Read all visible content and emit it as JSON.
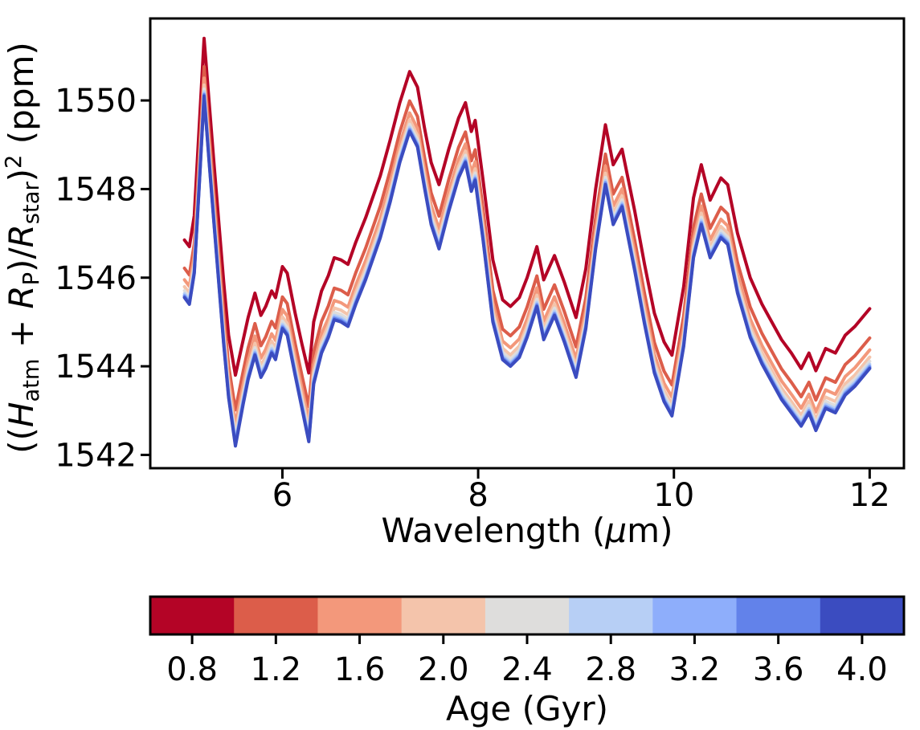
{
  "figure": {
    "background": "#ffffff"
  },
  "chart_data": {
    "type": "line",
    "title": "",
    "xlabel": "Wavelength (μm)",
    "ylabel": "((H_atm + R_P)/R_star)^2 (ppm)",
    "xlabel_parts": [
      {
        "t": "Wavelength (",
        "s": "n"
      },
      {
        "t": "μ",
        "s": "i"
      },
      {
        "t": "m)",
        "s": "n"
      }
    ],
    "ylabel_parts": [
      {
        "t": "((",
        "s": "n"
      },
      {
        "t": "H",
        "s": "i"
      },
      {
        "t": "atm",
        "s": "sub"
      },
      {
        "t": " + ",
        "s": "n"
      },
      {
        "t": "R",
        "s": "i"
      },
      {
        "t": "P",
        "s": "sub"
      },
      {
        "t": ")/",
        "s": "n"
      },
      {
        "t": "R",
        "s": "i"
      },
      {
        "t": "star",
        "s": "sub"
      },
      {
        "t": ")",
        "s": "n"
      },
      {
        "t": "2",
        "s": "sup"
      },
      {
        "t": " (ppm)",
        "s": "n"
      }
    ],
    "grid": false,
    "legend": "none (colorbar encodes series)",
    "xlim": [
      4.65,
      12.35
    ],
    "ylim": [
      1541.7,
      1551.85
    ],
    "x_ticks": [
      "6",
      "8",
      "10",
      "12"
    ],
    "x_tick_values": [
      6,
      8,
      10,
      12
    ],
    "y_ticks": [
      "1542",
      "1544",
      "1546",
      "1548",
      "1550"
    ],
    "y_tick_values": [
      1542,
      1544,
      1546,
      1548,
      1550
    ],
    "x": [
      5.0,
      5.05,
      5.1,
      5.15,
      5.2,
      5.25,
      5.3,
      5.4,
      5.45,
      5.52,
      5.6,
      5.65,
      5.72,
      5.78,
      5.83,
      5.89,
      5.93,
      6.0,
      6.05,
      6.13,
      6.2,
      6.27,
      6.32,
      6.4,
      6.47,
      6.53,
      6.6,
      6.67,
      6.75,
      6.85,
      7.0,
      7.1,
      7.2,
      7.3,
      7.38,
      7.45,
      7.52,
      7.6,
      7.7,
      7.8,
      7.87,
      7.93,
      7.97,
      8.05,
      8.15,
      8.25,
      8.33,
      8.42,
      8.5,
      8.6,
      8.67,
      8.78,
      8.88,
      9.0,
      9.1,
      9.2,
      9.3,
      9.38,
      9.47,
      9.6,
      9.7,
      9.8,
      9.9,
      9.98,
      10.1,
      10.2,
      10.28,
      10.37,
      10.48,
      10.55,
      10.65,
      10.78,
      10.9,
      11.0,
      11.1,
      11.2,
      11.3,
      11.38,
      11.45,
      11.55,
      11.65,
      11.75,
      11.85,
      12.0
    ],
    "bounds": {
      "age_0_8_ppm": [
        1546.85,
        1546.7,
        1547.4,
        1549.4,
        1551.4,
        1550.0,
        1548.6,
        1545.9,
        1544.7,
        1543.8,
        1544.6,
        1545.1,
        1545.65,
        1545.15,
        1545.35,
        1545.7,
        1545.55,
        1546.25,
        1546.1,
        1545.2,
        1544.5,
        1543.85,
        1545.0,
        1545.7,
        1546.05,
        1546.45,
        1546.4,
        1546.3,
        1546.8,
        1547.35,
        1548.3,
        1549.1,
        1549.95,
        1550.65,
        1550.3,
        1549.4,
        1548.6,
        1548.1,
        1548.9,
        1549.6,
        1549.95,
        1549.3,
        1549.55,
        1548.2,
        1546.4,
        1545.5,
        1545.35,
        1545.55,
        1546.0,
        1546.7,
        1545.95,
        1546.5,
        1545.9,
        1545.1,
        1546.2,
        1548.0,
        1549.45,
        1548.55,
        1548.9,
        1547.5,
        1546.3,
        1545.2,
        1544.55,
        1544.25,
        1545.8,
        1547.8,
        1548.55,
        1547.75,
        1548.25,
        1548.1,
        1547.0,
        1546.0,
        1545.4,
        1545.0,
        1544.6,
        1544.3,
        1543.95,
        1544.3,
        1543.9,
        1544.4,
        1544.3,
        1544.7,
        1544.9,
        1545.3
      ],
      "age_4_0_ppm": [
        1545.55,
        1545.4,
        1546.1,
        1548.05,
        1550.1,
        1548.65,
        1547.25,
        1544.5,
        1543.3,
        1542.2,
        1543.15,
        1543.7,
        1544.25,
        1543.75,
        1543.95,
        1544.3,
        1544.15,
        1544.85,
        1544.7,
        1543.8,
        1543.05,
        1542.3,
        1543.6,
        1544.3,
        1544.65,
        1545.05,
        1545.0,
        1544.9,
        1545.4,
        1545.95,
        1546.9,
        1547.7,
        1548.6,
        1549.3,
        1548.95,
        1548.05,
        1547.2,
        1546.65,
        1547.5,
        1548.25,
        1548.6,
        1547.95,
        1548.2,
        1546.85,
        1545.0,
        1544.15,
        1544.0,
        1544.2,
        1544.65,
        1545.35,
        1544.6,
        1545.15,
        1544.55,
        1543.75,
        1544.85,
        1546.65,
        1548.1,
        1547.2,
        1547.6,
        1546.15,
        1544.95,
        1543.85,
        1543.2,
        1542.88,
        1544.45,
        1546.45,
        1547.2,
        1546.45,
        1546.9,
        1546.75,
        1545.65,
        1544.65,
        1544.05,
        1543.65,
        1543.25,
        1542.95,
        1542.65,
        1542.95,
        1542.55,
        1543.05,
        1542.95,
        1543.35,
        1543.55,
        1543.95
      ]
    },
    "series_note": "9 lines, one per age bin; values = age_4_0_ppm + frac * (age_0_8_ppm - age_4_0_ppm)",
    "series": [
      {
        "name": "0.8 Gyr",
        "age": 0.8,
        "color": "#b40426",
        "frac": 1.0
      },
      {
        "name": "1.2 Gyr",
        "age": 1.2,
        "color": "#dc5d4a",
        "frac": 0.51
      },
      {
        "name": "1.6 Gyr",
        "age": 1.6,
        "color": "#f3987b",
        "frac": 0.31
      },
      {
        "name": "2.0 Gyr",
        "age": 2.0,
        "color": "#f4c4ab",
        "frac": 0.19
      },
      {
        "name": "2.4 Gyr",
        "age": 2.4,
        "color": "#dedddc",
        "frac": 0.12
      },
      {
        "name": "2.8 Gyr",
        "age": 2.8,
        "color": "#b7cff5",
        "frac": 0.07
      },
      {
        "name": "3.2 Gyr",
        "age": 3.2,
        "color": "#8eaefb",
        "frac": 0.04
      },
      {
        "name": "3.6 Gyr",
        "age": 3.6,
        "color": "#6282ea",
        "frac": 0.02
      },
      {
        "name": "4.0 Gyr",
        "age": 4.0,
        "color": "#3b4cc0",
        "frac": 0.0
      }
    ],
    "colorbar": {
      "label": "Age (Gyr)",
      "orientation": "horizontal",
      "tick_labels": [
        "0.8",
        "1.2",
        "1.6",
        "2.0",
        "2.4",
        "2.8",
        "3.2",
        "3.6",
        "4.0"
      ],
      "segment_colors": [
        "#b40426",
        "#dc5d4a",
        "#f3987b",
        "#f4c4ab",
        "#dedddc",
        "#b7cff5",
        "#8eaefb",
        "#6282ea",
        "#3b4cc0"
      ]
    }
  }
}
